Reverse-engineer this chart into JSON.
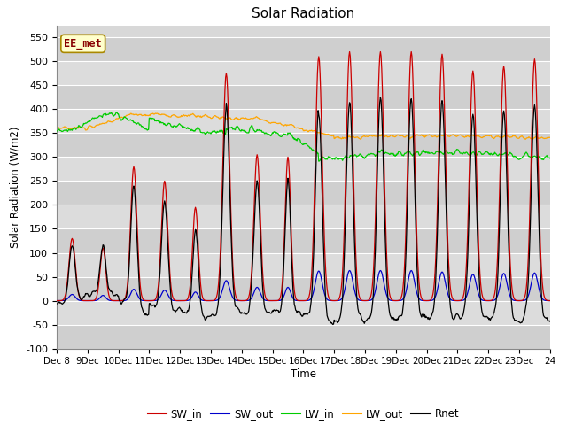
{
  "title": "Solar Radiation",
  "xlabel": "Time",
  "ylabel": "Solar Radiation (W/m2)",
  "ylim": [
    -100,
    575
  ],
  "yticks": [
    -100,
    -50,
    0,
    50,
    100,
    150,
    200,
    250,
    300,
    350,
    400,
    450,
    500,
    550
  ],
  "colors": {
    "SW_in": "#cc0000",
    "SW_out": "#0000cc",
    "LW_in": "#00cc00",
    "LW_out": "#ffa500",
    "Rnet": "#000000"
  },
  "annotation_text": "EE_met",
  "annotation_bg": "#ffffcc",
  "annotation_border": "#aa8800",
  "annotation_text_color": "#880000",
  "bg_color": "#d8d8d8"
}
